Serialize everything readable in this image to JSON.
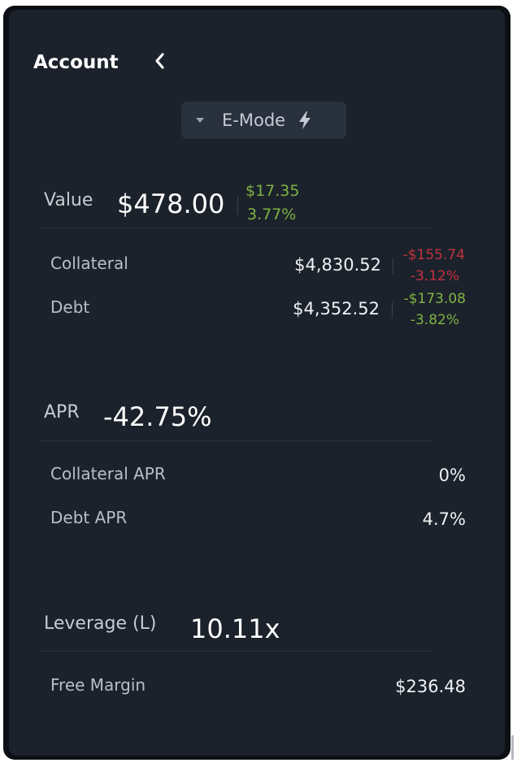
{
  "header": {
    "title": "Account"
  },
  "emode": {
    "label": "E-Mode"
  },
  "value": {
    "label": "Value",
    "amount": "$478.00",
    "change_amount": "$17.35",
    "change_pct": "3.77%",
    "rows": [
      {
        "label": "Collateral",
        "value": "$4,830.52",
        "change_amount": "-$155.74",
        "change_pct": "-3.12%"
      },
      {
        "label": "Debt",
        "value": "$4,352.52",
        "change_amount": "-$173.08",
        "change_pct": "-3.82%"
      }
    ]
  },
  "apr": {
    "label": "APR",
    "amount": "-42.75%",
    "rows": [
      {
        "label": "Collateral APR",
        "value": "0%"
      },
      {
        "label": "Debt APR",
        "value": "4.7%"
      }
    ]
  },
  "leverage": {
    "label": "Leverage (L)",
    "amount": "10.11x",
    "rows": [
      {
        "label": "Free Margin",
        "value": "$236.48"
      }
    ]
  },
  "colors": {
    "positive": "#7db343",
    "negative": "#c0333f",
    "panel_bg": "#1c222b"
  },
  "icons": [
    "chevron-left-icon",
    "caret-down-icon",
    "lightning-bolt-icon"
  ]
}
